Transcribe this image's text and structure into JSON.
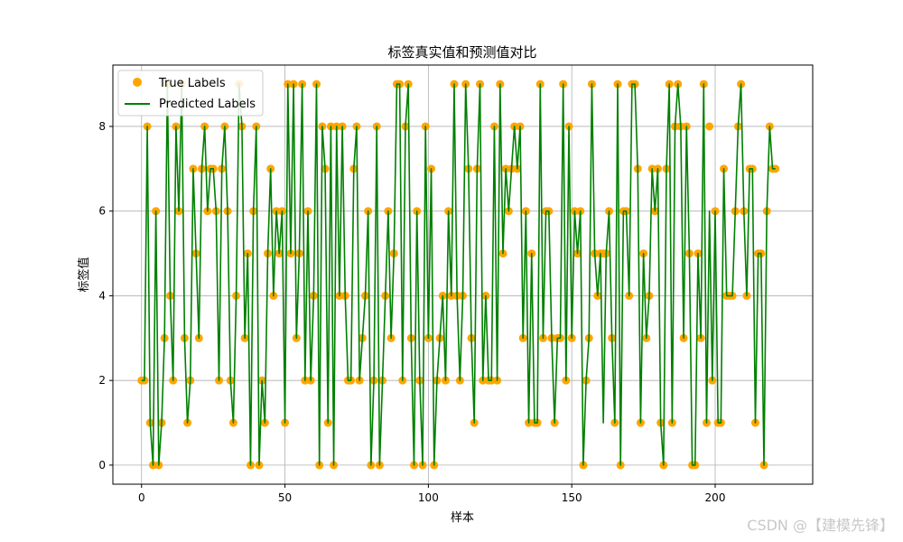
{
  "chart_data": {
    "type": "scatter+line",
    "title": "标签真实值和预测值对比",
    "xlabel": "样本",
    "ylabel": "标签值",
    "xlim": [
      -10,
      234
    ],
    "ylim": [
      -0.45,
      9.45
    ],
    "xticks": [
      0,
      50,
      100,
      150,
      200
    ],
    "yticks": [
      0,
      2,
      4,
      6,
      8
    ],
    "grid": true,
    "legend_position": "top-left",
    "series": [
      {
        "name": "True Labels",
        "kind": "scatter",
        "color": "#ffa500",
        "values": [
          2,
          2,
          8,
          1,
          0,
          6,
          0,
          1,
          3,
          9,
          4,
          2,
          8,
          6,
          9,
          3,
          1,
          2,
          7,
          5,
          3,
          7,
          8,
          6,
          7,
          7,
          6,
          2,
          7,
          8,
          6,
          2,
          1,
          4,
          9,
          8,
          3,
          5,
          0,
          6,
          8,
          0,
          2,
          1,
          5,
          7,
          4,
          6,
          5,
          6,
          1,
          9,
          5,
          9,
          3,
          5,
          9,
          2,
          6,
          2,
          4,
          9,
          0,
          8,
          7,
          1,
          8,
          0,
          8,
          4,
          8,
          4,
          2,
          2,
          7,
          8,
          2,
          3,
          4,
          6,
          0,
          2,
          8,
          0,
          2,
          4,
          6,
          3,
          5,
          9,
          9,
          2,
          8,
          9,
          3,
          0,
          6,
          2,
          0,
          8,
          3,
          7,
          0,
          2,
          3,
          4,
          2,
          6,
          4,
          9,
          4,
          2,
          4,
          9,
          7,
          3,
          1,
          7,
          9,
          2,
          4,
          2,
          2,
          8,
          2,
          9,
          5,
          7,
          6,
          7,
          8,
          7,
          8,
          3,
          6,
          1,
          5,
          1,
          1,
          9,
          3,
          6,
          6,
          3,
          1,
          3,
          3,
          9,
          2,
          8,
          3,
          6,
          5,
          6,
          0,
          2,
          3,
          9,
          5,
          4,
          5,
          5,
          5,
          6,
          3,
          1,
          9,
          0,
          6,
          6,
          4,
          9,
          9,
          7,
          1,
          5,
          3,
          4,
          7,
          6,
          7,
          1,
          0,
          7,
          9,
          1,
          8,
          9,
          8,
          3,
          8,
          5,
          0,
          0,
          5,
          3,
          9,
          1,
          8,
          2,
          6,
          1,
          1,
          7,
          4,
          4,
          4,
          6,
          8,
          9,
          6,
          4,
          7,
          7,
          1,
          5,
          5,
          0,
          6,
          8,
          7,
          7
        ]
      },
      {
        "name": "Predicted Labels",
        "kind": "line",
        "color": "#008000",
        "values": [
          2,
          2,
          8,
          1,
          0,
          6,
          0,
          1,
          3,
          9,
          4,
          2,
          8,
          6,
          9,
          3,
          1,
          2,
          7,
          5,
          3,
          7,
          8,
          6,
          7,
          7,
          6,
          2,
          7,
          8,
          6,
          2,
          1,
          4,
          9,
          8,
          3,
          5,
          0,
          6,
          8,
          0,
          2,
          1,
          5,
          7,
          4,
          6,
          5,
          6,
          1,
          9,
          5,
          9,
          3,
          5,
          9,
          2,
          6,
          2,
          4,
          9,
          0,
          8,
          7,
          1,
          8,
          0,
          8,
          4,
          8,
          4,
          2,
          2,
          7,
          8,
          2,
          3,
          4,
          6,
          0,
          2,
          8,
          0,
          2,
          4,
          6,
          3,
          5,
          9,
          9,
          2,
          8,
          9,
          3,
          0,
          6,
          2,
          0,
          8,
          3,
          7,
          0,
          2,
          3,
          4,
          2,
          6,
          4,
          9,
          4,
          2,
          4,
          9,
          7,
          3,
          1,
          7,
          9,
          2,
          4,
          2,
          2,
          8,
          2,
          9,
          5,
          7,
          6,
          7,
          8,
          7,
          8,
          3,
          6,
          1,
          5,
          1,
          1,
          9,
          3,
          6,
          6,
          3,
          1,
          3,
          3,
          9,
          2,
          8,
          3,
          6,
          5,
          6,
          0,
          2,
          3,
          9,
          5,
          4,
          5,
          1,
          5,
          6,
          3,
          1,
          9,
          0,
          6,
          6,
          4,
          9,
          9,
          7,
          1,
          5,
          3,
          4,
          7,
          6,
          7,
          1,
          0,
          7,
          9,
          1,
          8,
          9,
          8,
          3,
          8,
          5,
          0,
          0,
          5,
          3,
          9,
          1,
          6,
          2,
          6,
          1,
          1,
          7,
          4,
          4,
          4,
          6,
          8,
          9,
          6,
          4,
          7,
          7,
          1,
          5,
          5,
          0,
          6,
          8,
          7,
          7
        ]
      }
    ]
  },
  "watermark": "CSDN @【建模先锋】"
}
